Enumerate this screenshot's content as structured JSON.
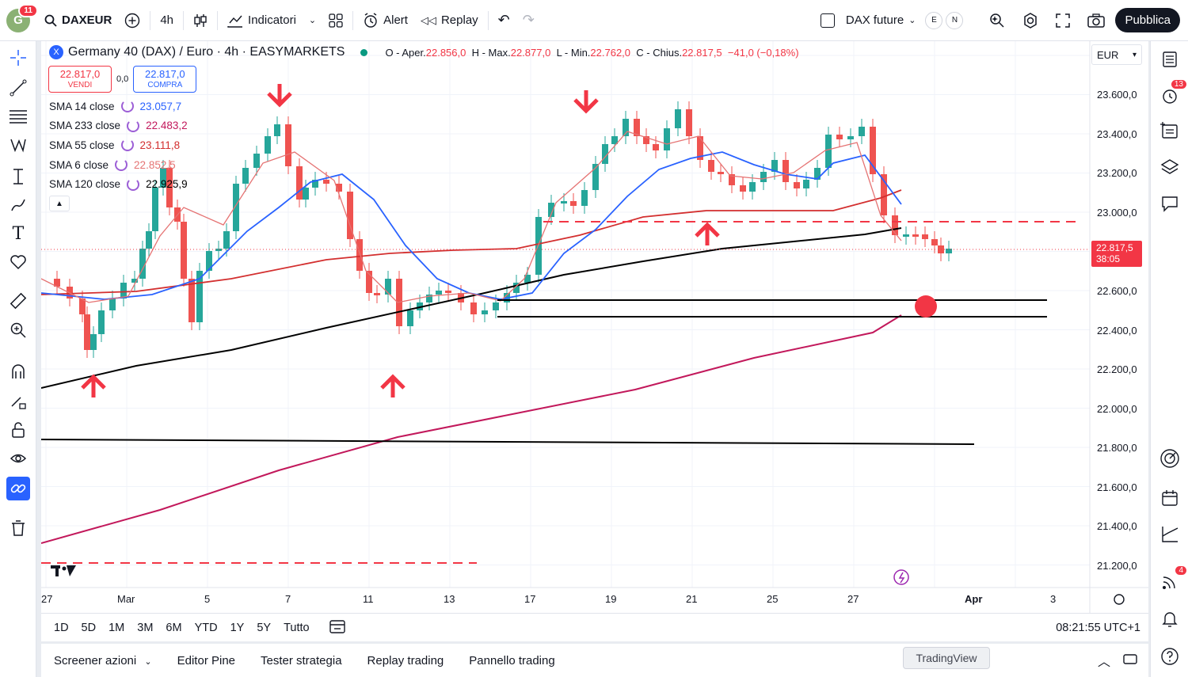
{
  "header": {
    "avatar_letter": "G",
    "avatar_badge": "11",
    "symbol": "DAXEUR",
    "interval": "4h",
    "indicators_label": "Indicatori",
    "alert_label": "Alert",
    "replay_label": "Replay",
    "watch_label": "DAX future",
    "e_label": "E",
    "n_label": "N",
    "publish_label": "Pubblica"
  },
  "legend": {
    "x_logo": "X",
    "title": "Germany 40 (DAX) / Euro · 4h · EASYMARKETS",
    "o_label": "O - Aper.",
    "o_value": "22.856,0",
    "h_label": "H - Max.",
    "h_value": "22.877,0",
    "l_label": "L - Min.",
    "l_value": "22.762,0",
    "c_label": "C - Chius.",
    "c_value": "22.817,5",
    "change": "−41,0 (−0,18%)",
    "sell_price": "22.817,0",
    "sell_label": "VENDI",
    "spread": "0,0",
    "buy_price": "22.817,0",
    "buy_label": "COMPRA"
  },
  "indicators": [
    {
      "name": "SMA 14 close",
      "value": "23.057,7",
      "color": "#2962ff"
    },
    {
      "name": "SMA 233 close",
      "value": "22.483,2",
      "color": "#c2185b"
    },
    {
      "name": "SMA 55 close",
      "value": "23.111,8",
      "color": "#d32f2f"
    },
    {
      "name": "SMA 6 close",
      "value": "22.852,5",
      "color": "#e57373"
    },
    {
      "name": "SMA 120 close",
      "value": "22.925,9",
      "color": "#000000"
    }
  ],
  "price_axis": {
    "currency": "EUR",
    "labels": [
      "23.600,0",
      "23.400,0",
      "23.200,0",
      "23.000,0",
      "22.600,0",
      "22.400,0",
      "22.200,0",
      "22.000,0",
      "21.800,0",
      "21.600,0",
      "21.400,0",
      "21.200,0"
    ],
    "current_price": "22.817,5",
    "countdown": "38:05"
  },
  "time_axis": {
    "labels": [
      "27",
      "Mar",
      "5",
      "7",
      "11",
      "13",
      "17",
      "19",
      "21",
      "25",
      "27",
      "Apr",
      "3"
    ]
  },
  "range_bar": {
    "ranges": [
      "1D",
      "5D",
      "1M",
      "3M",
      "6M",
      "YTD",
      "1Y",
      "5Y",
      "Tutto"
    ],
    "clock": "08:21:55 UTC+1"
  },
  "bottom_bar": {
    "tabs": [
      "Screener azioni",
      "Editor Pine",
      "Tester strategia",
      "Replay trading",
      "Pannello trading"
    ],
    "tooltip": "TradingView"
  },
  "right_toolbar": {
    "alerts_badge": "13",
    "notifications_badge": "4"
  },
  "colors": {
    "up": "#26a69a",
    "down": "#ef5350",
    "annotation_red": "#f23645",
    "accent": "#2962ff"
  }
}
